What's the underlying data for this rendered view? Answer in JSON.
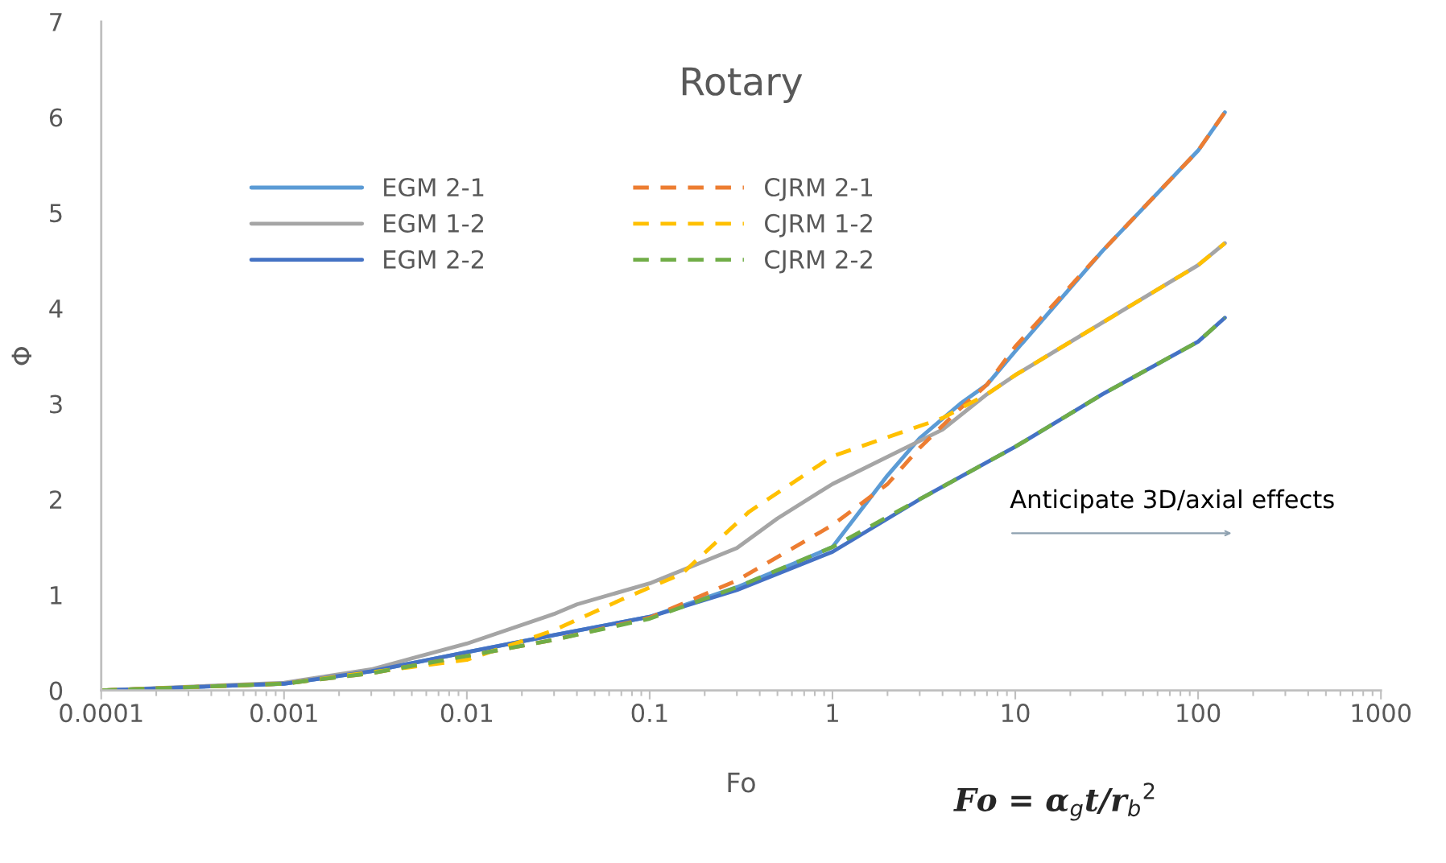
{
  "chart_data": {
    "type": "line",
    "title": "Rotary",
    "xlabel": "Fo",
    "ylabel": "Φ",
    "log": "x",
    "xlim": [
      0.0001,
      1000
    ],
    "ylim": [
      0,
      7
    ],
    "xticks": [
      0.0001,
      0.001,
      0.01,
      0.1,
      1,
      10,
      100,
      1000
    ],
    "yticks": [
      0,
      1,
      2,
      3,
      4,
      5,
      6,
      7
    ],
    "grid": false,
    "legend": "top left",
    "marker": "none",
    "annotations": [
      "Anticipate 3D/axial effects",
      "Fo = α$_{g}$t/r$_{b}$$^{2}$"
    ],
    "series": [
      {
        "name": "EGM 2-1",
        "color": "#5b9bd5",
        "line_style": "solid",
        "x": [
          0.0001,
          0.001,
          0.003,
          0.01,
          0.03,
          0.1,
          0.3,
          0.6,
          1,
          2,
          3,
          5,
          7,
          10,
          30,
          100,
          140
        ],
        "values": [
          0,
          0.07,
          0.2,
          0.4,
          0.58,
          0.77,
          1.08,
          1.32,
          1.5,
          2.25,
          2.64,
          3.0,
          3.2,
          3.55,
          4.6,
          5.65,
          6.05
        ]
      },
      {
        "name": "EGM 1-2",
        "color": "#a5a5a5",
        "line_style": "solid",
        "x": [
          0.0001,
          0.001,
          0.003,
          0.01,
          0.03,
          0.04,
          0.1,
          0.3,
          0.5,
          1,
          4,
          7,
          10,
          30,
          100,
          140
        ],
        "values": [
          0,
          0.08,
          0.22,
          0.49,
          0.8,
          0.9,
          1.12,
          1.49,
          1.8,
          2.16,
          2.73,
          3.1,
          3.3,
          3.85,
          4.45,
          4.68
        ]
      },
      {
        "name": "EGM 2-2",
        "color": "#4472c4",
        "line_style": "solid",
        "x": [
          0.0001,
          0.001,
          0.003,
          0.01,
          0.03,
          0.1,
          0.3,
          1,
          3,
          10,
          30,
          100,
          140
        ],
        "values": [
          0,
          0.07,
          0.2,
          0.4,
          0.58,
          0.77,
          1.05,
          1.45,
          2.0,
          2.55,
          3.1,
          3.65,
          3.9
        ]
      },
      {
        "name": "CJRM 2-1",
        "color": "#ed7d31",
        "line_style": "dashed",
        "x": [
          0.0001,
          0.001,
          0.003,
          0.01,
          0.03,
          0.1,
          0.3,
          1,
          2,
          3,
          5,
          7,
          10,
          30,
          100,
          140
        ],
        "values": [
          0,
          0.07,
          0.18,
          0.36,
          0.53,
          0.76,
          1.15,
          1.73,
          2.16,
          2.54,
          2.95,
          3.2,
          3.6,
          4.6,
          5.65,
          6.05
        ]
      },
      {
        "name": "CJRM 1-2",
        "color": "#ffc000",
        "line_style": "dashed",
        "x": [
          0.0001,
          0.001,
          0.003,
          0.01,
          0.03,
          0.07,
          0.15,
          0.35,
          1,
          4,
          7,
          10,
          30,
          100,
          140
        ],
        "values": [
          0,
          0.07,
          0.19,
          0.32,
          0.63,
          0.95,
          1.22,
          1.87,
          2.45,
          2.85,
          3.1,
          3.3,
          3.85,
          4.45,
          4.68
        ]
      },
      {
        "name": "CJRM 2-2",
        "color": "#70ad47",
        "line_style": "dashed",
        "x": [
          0.0001,
          0.001,
          0.003,
          0.01,
          0.03,
          0.1,
          0.3,
          1,
          3,
          10,
          30,
          100,
          140
        ],
        "values": [
          0,
          0.07,
          0.18,
          0.36,
          0.53,
          0.75,
          1.08,
          1.5,
          2.0,
          2.55,
          3.1,
          3.65,
          3.9
        ]
      }
    ]
  }
}
